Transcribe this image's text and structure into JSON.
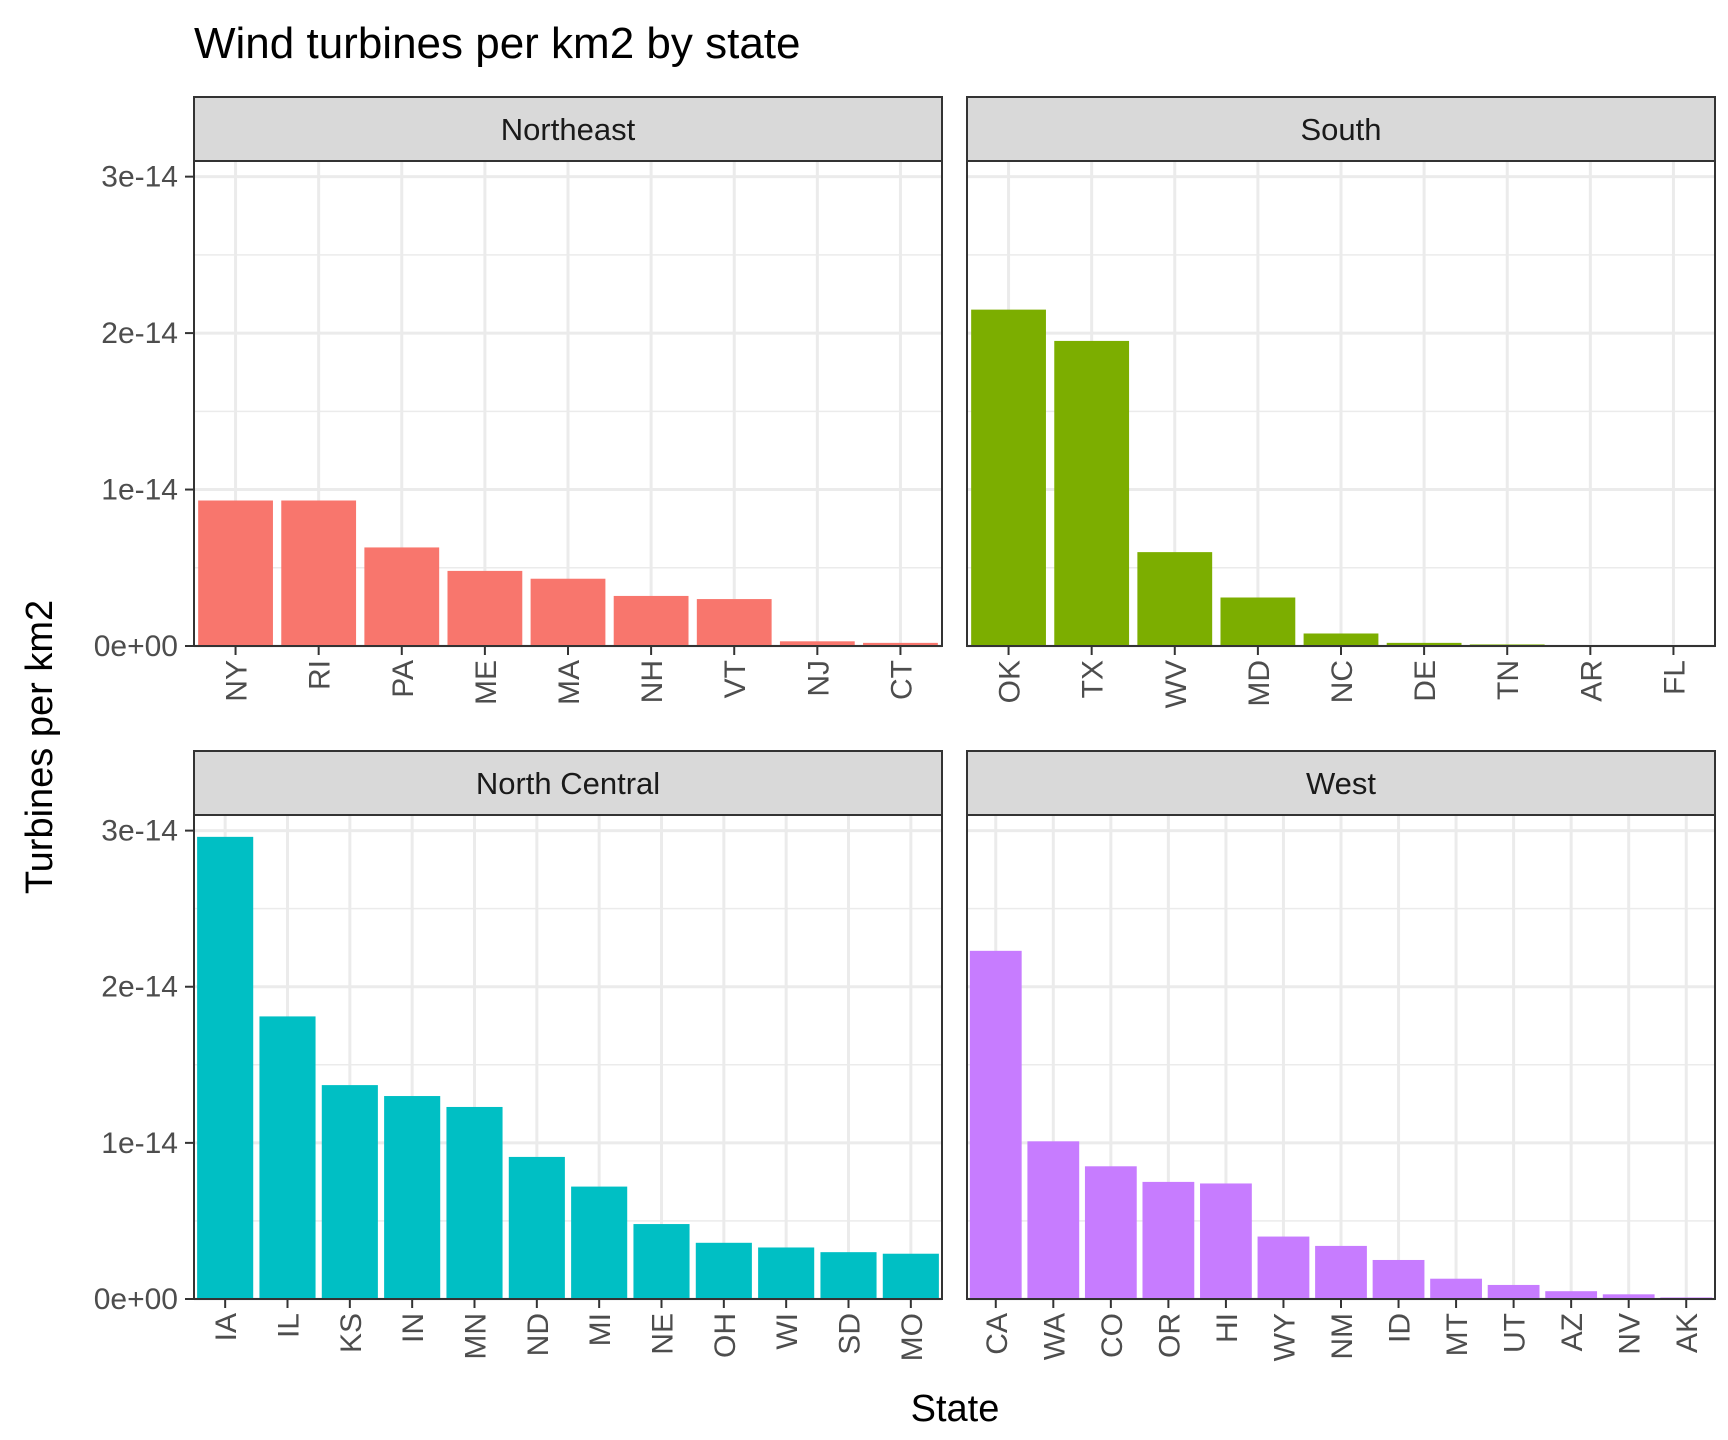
{
  "chart_data": {
    "type": "bar",
    "title": "Wind turbines per km2 by state",
    "xlabel": "State",
    "ylabel": "Turbines per km2",
    "ylim": [
      0,
      3.1e-14
    ],
    "yticks": [
      {
        "value": 0,
        "label": "0e+00"
      },
      {
        "value": 1e-14,
        "label": "1e-14"
      },
      {
        "value": 2e-14,
        "label": "2e-14"
      },
      {
        "value": 3e-14,
        "label": "3e-14"
      }
    ],
    "grid": true,
    "legend": "none",
    "panels": [
      {
        "name": "Northeast",
        "color": "#F8766D",
        "categories": [
          "NY",
          "RI",
          "PA",
          "ME",
          "MA",
          "NH",
          "VT",
          "NJ",
          "CT"
        ],
        "values": [
          9.3e-15,
          9.3e-15,
          6.3e-15,
          4.8e-15,
          4.3e-15,
          3.2e-15,
          3e-15,
          3e-16,
          2e-16
        ]
      },
      {
        "name": "South",
        "color": "#7CAE00",
        "categories": [
          "OK",
          "TX",
          "WV",
          "MD",
          "NC",
          "DE",
          "TN",
          "AR",
          "FL"
        ],
        "values": [
          2.15e-14,
          1.95e-14,
          6e-15,
          3.1e-15,
          8e-16,
          2e-16,
          1e-16,
          0,
          0
        ]
      },
      {
        "name": "North Central",
        "color": "#00BFC4",
        "categories": [
          "IA",
          "IL",
          "KS",
          "IN",
          "MN",
          "ND",
          "MI",
          "NE",
          "OH",
          "WI",
          "SD",
          "MO"
        ],
        "values": [
          2.96e-14,
          1.81e-14,
          1.37e-14,
          1.3e-14,
          1.23e-14,
          9.1e-15,
          7.2e-15,
          4.8e-15,
          3.6e-15,
          3.3e-15,
          3e-15,
          2.9e-15
        ]
      },
      {
        "name": "West",
        "color": "#C77CFF",
        "categories": [
          "CA",
          "WA",
          "CO",
          "OR",
          "HI",
          "WY",
          "NM",
          "ID",
          "MT",
          "UT",
          "AZ",
          "NV",
          "AK"
        ],
        "values": [
          2.23e-14,
          1.01e-14,
          8.5e-15,
          7.5e-15,
          7.4e-15,
          4e-15,
          3.4e-15,
          2.5e-15,
          1.3e-15,
          9e-16,
          5e-16,
          3e-16,
          1e-16
        ]
      }
    ]
  }
}
